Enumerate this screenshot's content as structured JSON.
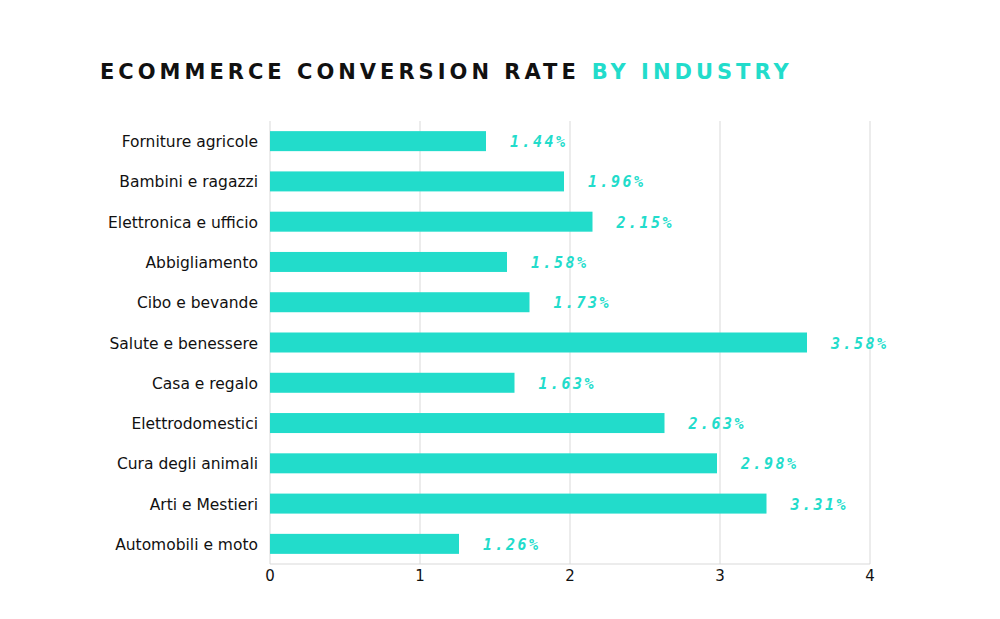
{
  "chart_data": {
    "type": "bar",
    "title": "ECOMMERCE CONVERSION RATE",
    "subtitle": "BY INDUSTRY",
    "orientation": "horizontal",
    "categories": [
      "Forniture agricole",
      "Bambini e ragazzi",
      "Elettronica e ufficio",
      "Abbigliamento",
      "Cibo e bevande",
      "Salute e benessere",
      "Casa e regalo",
      "Elettrodomestici",
      "Cura degli animali",
      "Arti e Mestieri",
      "Automobili e moto"
    ],
    "values": [
      1.44,
      1.96,
      2.15,
      1.58,
      1.73,
      3.58,
      1.63,
      2.63,
      2.98,
      3.31,
      1.26
    ],
    "value_labels": [
      "1.44%",
      "1.96%",
      "2.15%",
      "1.58%",
      "1.73%",
      "3.58%",
      "1.63%",
      "2.63%",
      "2.98%",
      "3.31%",
      "1.26%"
    ],
    "color": "#22dccb",
    "xlim": [
      0,
      4
    ],
    "xticks": [
      0,
      1,
      2,
      3,
      4
    ],
    "grid": true,
    "data_labels": true
  }
}
